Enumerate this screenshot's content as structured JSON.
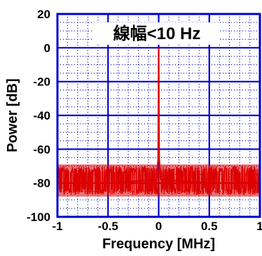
{
  "chart_data": {
    "type": "line",
    "title": "線幅<10 Hz",
    "xlabel": "Frequency [MHz]",
    "ylabel": "Power [dB]",
    "xlim": [
      -1,
      1
    ],
    "ylim": [
      -100,
      20
    ],
    "x_ticks": [
      -1,
      -0.5,
      0,
      0.5,
      1
    ],
    "x_tick_labels": [
      "-1",
      "-0.5",
      "0",
      "0.5",
      "1"
    ],
    "y_ticks": [
      -100,
      -80,
      -60,
      -40,
      -20,
      0,
      20
    ],
    "y_tick_labels": [
      "-100",
      "-80",
      "-60",
      "-40",
      "-20",
      "0",
      "20"
    ],
    "grid": true,
    "colors": {
      "series": "#dd0000",
      "axes": "#0000cc",
      "grid": "#0000cc",
      "minor_grid": "#0000cc"
    },
    "series": [
      {
        "noise_floor_db": -80,
        "noise_band_db": [
          -87,
          -70
        ],
        "points": [
          {
            "x": -1.0,
            "y": -80
          },
          {
            "x": -0.5,
            "y": -80
          },
          {
            "x": -0.02,
            "y": -78
          },
          {
            "x": -0.006,
            "y": -66
          },
          {
            "x": -0.003,
            "y": -34
          },
          {
            "x": 0.0,
            "y": 0
          },
          {
            "x": 0.003,
            "y": -34
          },
          {
            "x": 0.006,
            "y": -66
          },
          {
            "x": 0.02,
            "y": -78
          },
          {
            "x": 0.5,
            "y": -80
          },
          {
            "x": 1.0,
            "y": -80
          }
        ]
      }
    ]
  }
}
